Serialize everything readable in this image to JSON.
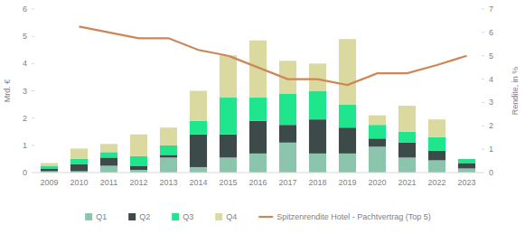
{
  "chart_data": {
    "type": "bar",
    "stacked": true,
    "grid": false,
    "legend": "bottom",
    "y_label": "Mrd. €",
    "y2_label": "Rendite, in %",
    "categories": [
      "2009",
      "2010",
      "2011",
      "2012",
      "2013",
      "2014",
      "2015",
      "2016",
      "2017",
      "2018",
      "2019",
      "2020",
      "2021",
      "2022",
      "2023"
    ],
    "ylim": [
      0,
      6
    ],
    "yticks": [
      0,
      1,
      2,
      3,
      4,
      5,
      6
    ],
    "y2lim": [
      0,
      7
    ],
    "y2ticks": [
      0,
      1,
      2,
      3,
      4,
      5,
      6,
      7
    ],
    "series": [
      {
        "name": "Q1",
        "color": "#8cc5ae",
        "type": "bar",
        "values": [
          0.05,
          0.05,
          0.25,
          0.1,
          0.55,
          0.2,
          0.55,
          0.7,
          1.1,
          0.7,
          0.7,
          0.95,
          0.55,
          0.45,
          0.15
        ]
      },
      {
        "name": "Q2",
        "color": "#3d4a4a",
        "type": "bar",
        "values": [
          0.1,
          0.25,
          0.3,
          0.15,
          0.1,
          1.2,
          0.85,
          1.2,
          0.65,
          1.25,
          0.95,
          0.3,
          0.55,
          0.35,
          0.2
        ]
      },
      {
        "name": "Q3",
        "color": "#1fe58c",
        "type": "bar",
        "values": [
          0.1,
          0.2,
          0.2,
          0.35,
          0.35,
          0.5,
          1.35,
          0.85,
          1.15,
          1.05,
          0.85,
          0.5,
          0.4,
          0.5,
          0.15
        ]
      },
      {
        "name": "Q4",
        "color": "#d9d9a0",
        "type": "bar",
        "values": [
          0.1,
          0.38,
          0.3,
          0.8,
          0.65,
          1.1,
          1.55,
          2.1,
          1.2,
          1.0,
          2.4,
          0.35,
          0.95,
          0.65,
          0
        ]
      },
      {
        "name": "Spitzenrendite Hotel - Pachtvertrag (Top 5)",
        "color": "#cf8657",
        "type": "line",
        "axis": "y2",
        "line_style": "solid",
        "values": [
          null,
          6.25,
          6.0,
          5.75,
          5.75,
          5.25,
          5.0,
          4.5,
          4.0,
          4.0,
          3.75,
          4.25,
          4.25,
          4.6,
          5.0
        ]
      }
    ]
  }
}
